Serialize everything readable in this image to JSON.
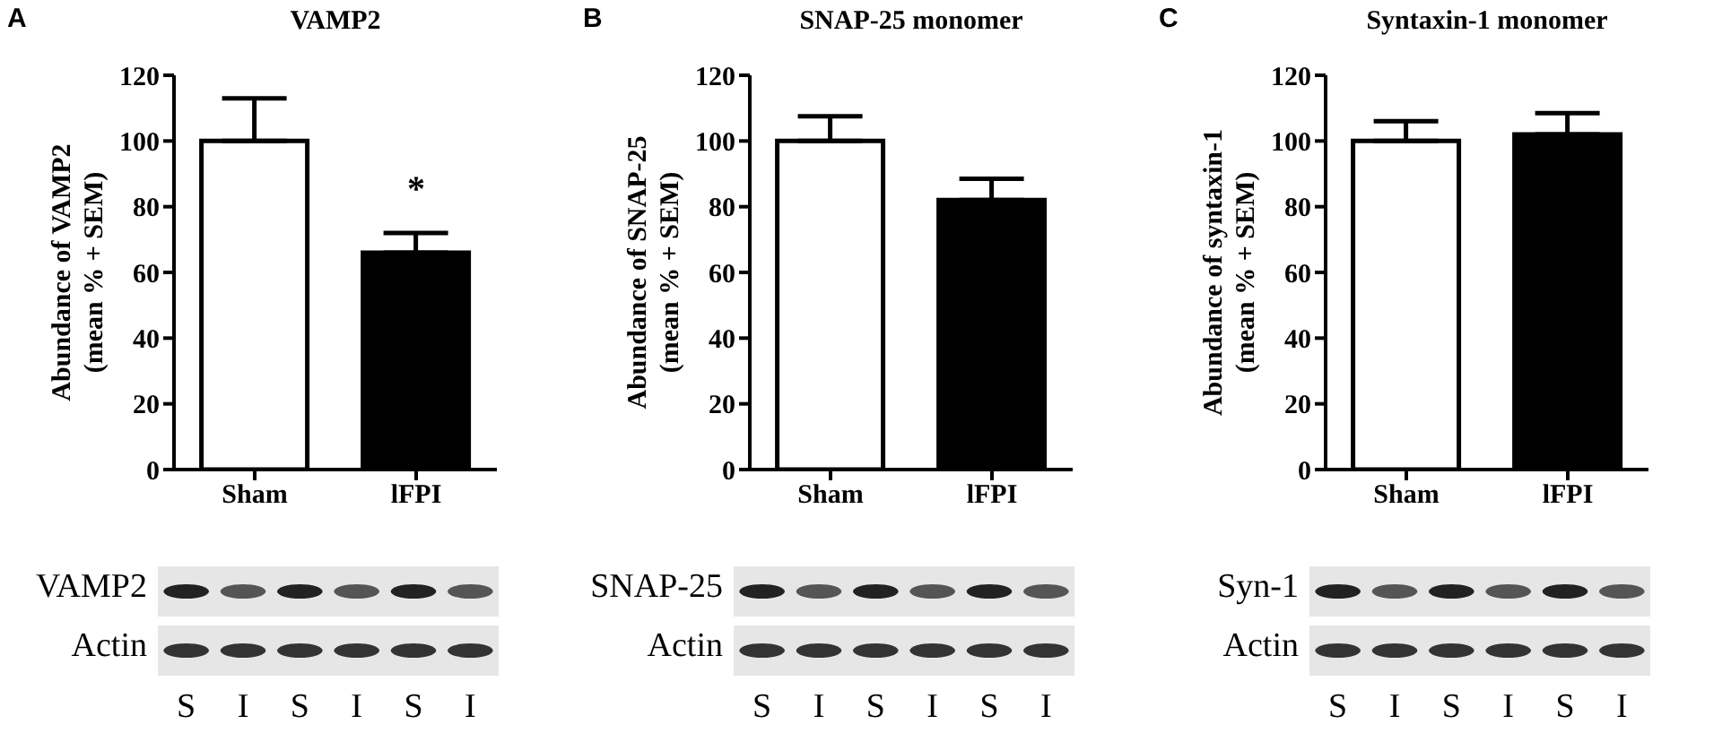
{
  "chart_data": [
    {
      "type": "bar",
      "title": "VAMP2",
      "ylabel": "Abundance of VAMP2\n(mean % + SEM)",
      "categories": [
        "Sham",
        "lFPI"
      ],
      "values": [
        100,
        66
      ],
      "colors": [
        "#ffffff",
        "#000000"
      ],
      "errors": [
        [
          100,
          113
        ],
        [
          66,
          72
        ]
      ],
      "ylim": [
        0,
        120
      ],
      "yticks": [
        0,
        20,
        40,
        60,
        80,
        100,
        120
      ],
      "grid": false,
      "legend": false,
      "annotations": [
        "A",
        "VAMP2",
        "Actin",
        "S",
        "I",
        "S",
        "I",
        "S",
        "I",
        "*"
      ]
    },
    {
      "type": "bar",
      "title": "SNAP-25 monomer",
      "ylabel": "Abundance of SNAP-25\n(mean % + SEM)",
      "categories": [
        "Sham",
        "lFPI"
      ],
      "values": [
        100,
        82
      ],
      "colors": [
        "#ffffff",
        "#000000"
      ],
      "errors": [
        [
          100,
          107.5
        ],
        [
          82,
          88.5
        ]
      ],
      "ylim": [
        0,
        120
      ],
      "yticks": [
        0,
        20,
        40,
        60,
        80,
        100,
        120
      ],
      "grid": false,
      "legend": false,
      "annotations": [
        "B",
        "SNAP-25",
        "Actin",
        "S",
        "I",
        "S",
        "I",
        "S",
        "I"
      ]
    },
    {
      "type": "bar",
      "title": "Syntaxin-1 monomer",
      "ylabel": "Abundance of syntaxin-1\n(mean % + SEM)",
      "categories": [
        "Sham",
        "lFPI"
      ],
      "values": [
        100,
        102
      ],
      "colors": [
        "#ffffff",
        "#000000"
      ],
      "errors": [
        [
          100,
          106
        ],
        [
          102,
          108.5
        ]
      ],
      "ylim": [
        0,
        120
      ],
      "yticks": [
        0,
        20,
        40,
        60,
        80,
        100,
        120
      ],
      "grid": false,
      "legend": false,
      "annotations": [
        "C",
        "Syn-1",
        "Actin",
        "S",
        "I",
        "S",
        "I",
        "S",
        "I"
      ]
    }
  ]
}
